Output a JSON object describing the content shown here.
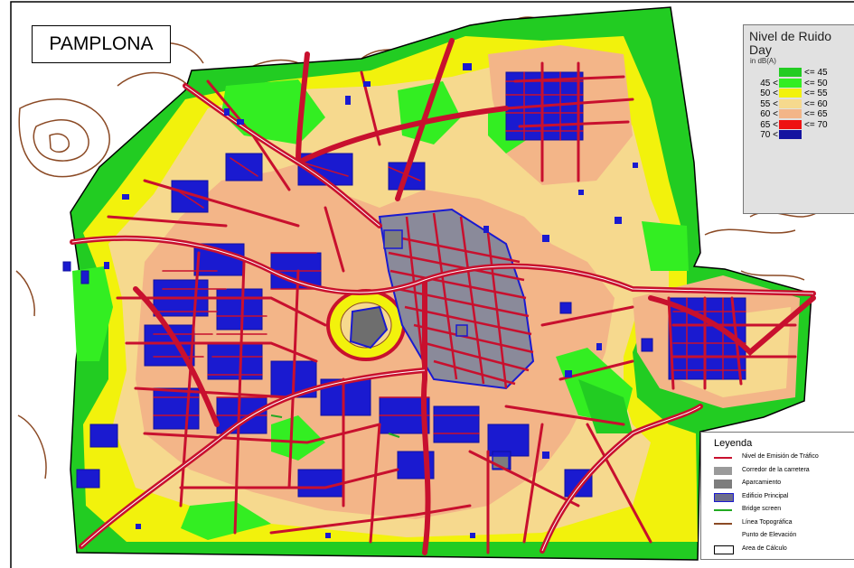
{
  "map": {
    "title": "PAMPLONA",
    "noise_legend": {
      "title_line1": "Nivel de Ruido",
      "title_line2": "Day",
      "unit": "in dB(A)",
      "classes": [
        {
          "lower": "",
          "upper": "<= 45",
          "color": "#22cc22"
        },
        {
          "lower": "45 <",
          "upper": "<= 50",
          "color": "#33ee22"
        },
        {
          "lower": "50 <",
          "upper": "<= 55",
          "color": "#f2f20c"
        },
        {
          "lower": "55 <",
          "upper": "<= 60",
          "color": "#f6d98e"
        },
        {
          "lower": "60 <",
          "upper": "<= 65",
          "color": "#f3b588"
        },
        {
          "lower": "65 <",
          "upper": "<= 70",
          "color": "#ee1111"
        },
        {
          "lower": "70 <",
          "upper": "",
          "color": "#1414a0"
        }
      ]
    },
    "leyenda": {
      "title": "Leyenda",
      "items": [
        {
          "label": "Nivel de Emisión de Tráfico",
          "symbol": "red-line"
        },
        {
          "label": "Corredor de la carretera",
          "symbol": "grey-box"
        },
        {
          "label": "Aparcamiento",
          "symbol": "grey-box-dark"
        },
        {
          "label": "Edificio Principal",
          "symbol": "blue-outlined-box"
        },
        {
          "label": "Bridge screen",
          "symbol": "green-line"
        },
        {
          "label": "Línea Topográfica",
          "symbol": "brown-line"
        },
        {
          "label": "Punto de Elevación",
          "symbol": "none"
        },
        {
          "label": "Area de Cálculo",
          "symbol": "outline-box"
        }
      ]
    },
    "colors": {
      "road": "#c8102e",
      "building": "#1a1ad0",
      "topo_line": "#8b4513",
      "boundary": "#000000"
    }
  }
}
